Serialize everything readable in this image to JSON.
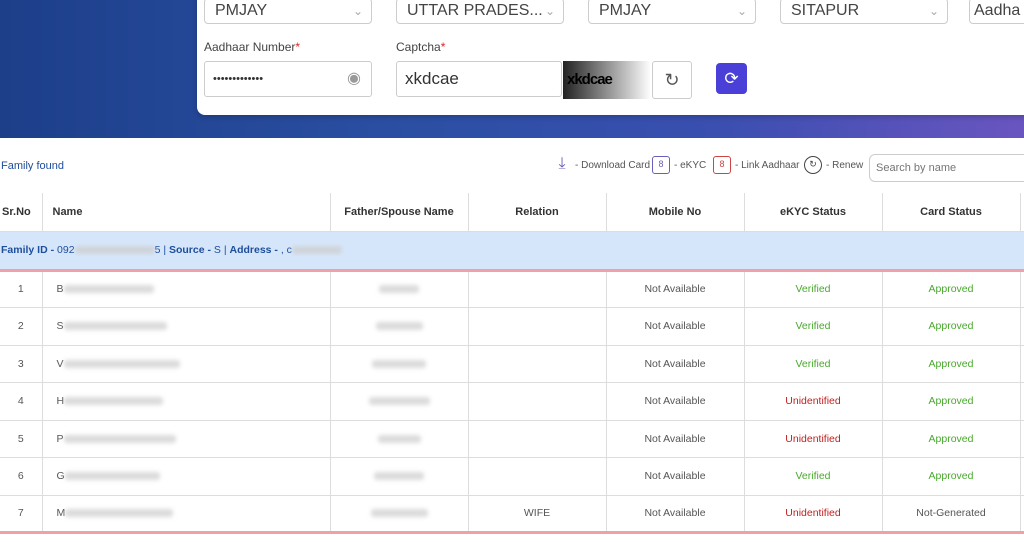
{
  "form": {
    "selects": [
      "PMJAY",
      "UTTAR PRADES...",
      "PMJAY",
      "SITAPUR",
      "Aadha"
    ],
    "aadhaar_label": "Aadhaar Number",
    "aadhaar_value": "•••••••••••••",
    "captcha_label": "Captcha",
    "captcha_value": "xkdcae",
    "captcha_image_text": "xkdcae",
    "required_mark": "*"
  },
  "toolbar": {
    "family_found": "Family found",
    "legend": [
      {
        "icon": "download-icon",
        "label": "- Download Card"
      },
      {
        "icon": "ekyc-icon",
        "label": "- eKYC"
      },
      {
        "icon": "link-aadhaar-icon",
        "label": "- Link Aadhaar"
      },
      {
        "icon": "renew-icon",
        "label": "- Renew"
      }
    ],
    "search_placeholder": "Search by name"
  },
  "table": {
    "headers": [
      "Sr.No",
      "Name",
      "Father/Spouse Name",
      "Relation",
      "Mobile No",
      "eKYC Status",
      "Card Status"
    ],
    "family": {
      "id_label": "Family ID -",
      "id_value": "092",
      "id_tail": "5 |",
      "source_label": "Source -",
      "source_value": "S |",
      "address_label": "Address -",
      "address_value": ", c"
    },
    "rows": [
      {
        "sr": "1",
        "name": "B",
        "relation": "",
        "mobile": "Not Available",
        "ekyc": "Verified",
        "card": "Approved"
      },
      {
        "sr": "2",
        "name": "S",
        "relation": "",
        "mobile": "Not Available",
        "ekyc": "Verified",
        "card": "Approved"
      },
      {
        "sr": "3",
        "name": "V",
        "relation": "",
        "mobile": "Not Available",
        "ekyc": "Verified",
        "card": "Approved"
      },
      {
        "sr": "4",
        "name": "H",
        "relation": "",
        "mobile": "Not Available",
        "ekyc": "Unidentified",
        "card": "Approved"
      },
      {
        "sr": "5",
        "name": "P",
        "relation": "",
        "mobile": "Not Available",
        "ekyc": "Unidentified",
        "card": "Approved"
      },
      {
        "sr": "6",
        "name": "G",
        "relation": "",
        "mobile": "Not Available",
        "ekyc": "Verified",
        "card": "Approved"
      },
      {
        "sr": "7",
        "name": "M",
        "relation": "WIFE",
        "mobile": "Not Available",
        "ekyc": "Unidentified",
        "card": "Not-Generated"
      }
    ]
  },
  "colors": {
    "accent": "#4a3fd6",
    "verified": "#4aa82e",
    "unidentified": "#c22020",
    "family_row": "#d6e6fa"
  }
}
